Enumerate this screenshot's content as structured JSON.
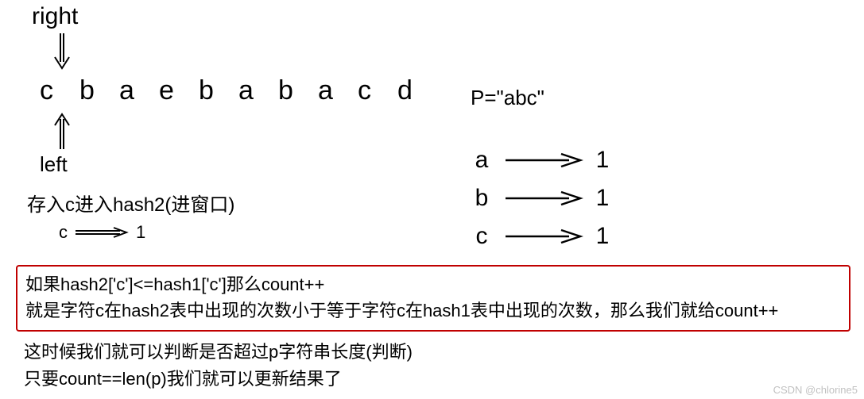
{
  "colors": {
    "text": "#000000",
    "background": "#ffffff",
    "box_border": "#c00000",
    "arrow_stroke": "#000000",
    "watermark": "rgba(0,0,0,0.25)"
  },
  "pointers": {
    "right_label": "right",
    "left_label": "left"
  },
  "string_chars": [
    "c",
    "b",
    "a",
    "e",
    "b",
    "a",
    "b",
    "a",
    "c",
    "d"
  ],
  "p_expr": "P=\"abc\"",
  "hash2_caption": "存入c进入hash2(进窗口)",
  "hash2_entry": {
    "key": "c",
    "value": "1"
  },
  "hash1": [
    {
      "key": "a",
      "value": "1"
    },
    {
      "key": "b",
      "value": "1"
    },
    {
      "key": "c",
      "value": "1"
    }
  ],
  "redbox": {
    "line1": "如果hash2['c']<=hash1['c']那么count++",
    "line2": "就是字符c在hash2表中出现的次数小于等于字符c在hash1表中出现的次数，那么我们就给count++"
  },
  "after_lines": {
    "l1": "这时候我们就可以判断是否超过p字符串长度(判断)",
    "l2": "只要count==len(p)我们就可以更新结果了"
  },
  "watermark": "CSDN @chlorine5",
  "arrow_style": {
    "stroke_width": 2,
    "head_len": 12
  }
}
